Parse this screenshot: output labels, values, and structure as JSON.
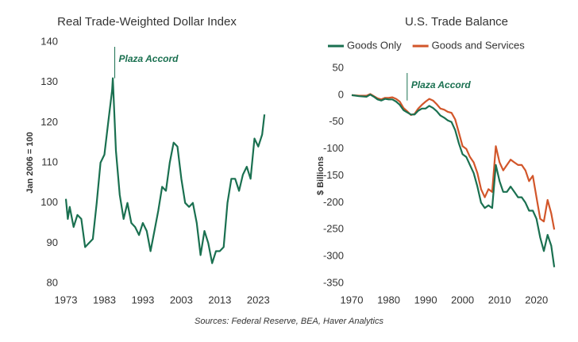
{
  "chart_data": [
    {
      "type": "line",
      "title": "Real Trade-Weighted Dollar Index",
      "ylabel": "Jan 2006 = 100",
      "color": "#1a7050",
      "x": [
        1973,
        1973.5,
        1974,
        1975,
        1976,
        1977,
        1978,
        1979,
        1980,
        1981,
        1982,
        1983,
        1984,
        1985,
        1985.2,
        1986,
        1987,
        1988,
        1989,
        1990,
        1991,
        1992,
        1993,
        1994,
        1995,
        1996,
        1997,
        1998,
        1999,
        2000,
        2001,
        2002,
        2003,
        2004,
        2005,
        2006,
        2007,
        2008,
        2009,
        2010,
        2011,
        2012,
        2013,
        2014,
        2015,
        2016,
        2017,
        2018,
        2019,
        2020,
        2021,
        2022,
        2023,
        2024,
        2024.6
      ],
      "values": [
        101,
        96,
        99,
        94,
        97,
        96,
        89,
        90,
        91,
        100,
        110,
        112,
        120,
        128,
        131,
        113,
        102,
        96,
        100,
        95,
        94,
        92,
        95,
        93,
        88,
        93,
        98,
        104,
        103,
        110,
        115,
        114,
        106,
        100,
        99,
        100,
        95,
        87,
        93,
        90,
        85,
        88,
        88,
        89,
        100,
        106,
        106,
        103,
        107,
        109,
        106,
        116,
        114,
        117,
        122
      ],
      "xlim": [
        1973,
        2025
      ],
      "xticks": [
        1973,
        1983,
        1993,
        2003,
        2013,
        2023
      ],
      "ylim": [
        80,
        140
      ],
      "yticks": [
        80,
        90,
        100,
        110,
        120,
        130,
        140
      ],
      "annotation": {
        "text": "Plaza Accord",
        "x": 1985.7
      }
    },
    {
      "type": "line",
      "title": "U.S. Trade Balance",
      "ylabel": "$ Billions",
      "legend": "top-left",
      "x": [
        1970,
        1972,
        1974,
        1975,
        1976,
        1977,
        1978,
        1979,
        1980,
        1981,
        1982,
        1983,
        1984,
        1985,
        1986,
        1987,
        1988,
        1989,
        1990,
        1991,
        1992,
        1993,
        1994,
        1995,
        1996,
        1997,
        1998,
        1999,
        2000,
        2001,
        2002,
        2003,
        2004,
        2005,
        2006,
        2007,
        2008,
        2009,
        2010,
        2011,
        2012,
        2013,
        2014,
        2015,
        2016,
        2017,
        2018,
        2019,
        2020,
        2021,
        2022,
        2023,
        2024,
        2024.8
      ],
      "series": [
        {
          "name": "Goods Only",
          "color": "#1a7050",
          "values": [
            0,
            -2,
            -3,
            1,
            -3,
            -8,
            -10,
            -7,
            -8,
            -8,
            -12,
            -18,
            -28,
            -32,
            -36,
            -36,
            -29,
            -25,
            -25,
            -20,
            -24,
            -30,
            -38,
            -42,
            -47,
            -50,
            -65,
            -90,
            -110,
            -115,
            -130,
            -145,
            -170,
            -200,
            -210,
            -205,
            -210,
            -130,
            -160,
            -180,
            -180,
            -170,
            -180,
            -190,
            -190,
            -200,
            -215,
            -215,
            -230,
            -265,
            -290,
            -260,
            -280,
            -320
          ]
        },
        {
          "name": "Goods and Services",
          "color": "#d2562a",
          "values": [
            0,
            -1,
            -1,
            2,
            -2,
            -6,
            -8,
            -5,
            -5,
            -4,
            -7,
            -12,
            -24,
            -30,
            -37,
            -35,
            -25,
            -18,
            -12,
            -7,
            -10,
            -17,
            -25,
            -27,
            -31,
            -33,
            -45,
            -70,
            -95,
            -100,
            -115,
            -125,
            -145,
            -175,
            -190,
            -175,
            -180,
            -95,
            -125,
            -140,
            -130,
            -120,
            -125,
            -130,
            -130,
            -140,
            -160,
            -150,
            -190,
            -230,
            -235,
            -195,
            -220,
            -250
          ]
        }
      ],
      "xlim": [
        1970,
        2025
      ],
      "xticks": [
        1970,
        1980,
        1990,
        2000,
        2010,
        2020
      ],
      "ylim": [
        -350,
        50
      ],
      "yticks": [
        -350,
        -300,
        -250,
        -200,
        -150,
        -100,
        -50,
        0,
        50
      ],
      "annotation": {
        "text": "Plaza Accord",
        "x": 1985
      }
    }
  ],
  "source": "Sources: Federal Reserve, BEA, Haver Analytics"
}
